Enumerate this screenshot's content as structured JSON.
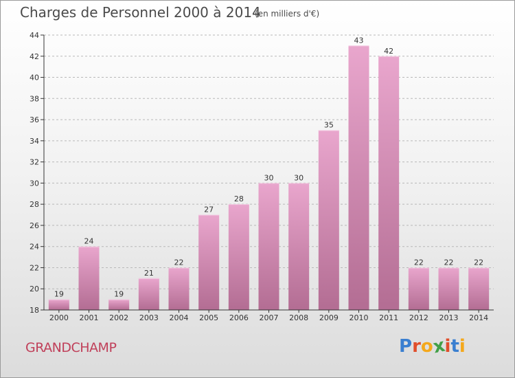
{
  "header": {
    "title": "Charges de Personnel 2000 à 2014",
    "subtitle": "(en milliers d'€)"
  },
  "footer": {
    "commune": "GRANDCHAMP",
    "logo_text": "Proxiti"
  },
  "colors": {
    "bar_top": "#e9a6cd",
    "bar_bottom": "#b36d93",
    "axis": "#333333",
    "grid": "#b8b8b8",
    "commune": "#c0405a",
    "logo_letters": [
      "#3a7fd0",
      "#e04e2b",
      "#f4a81c",
      "#42a047",
      "#e04e2b",
      "#3a7fd0",
      "#f4a81c"
    ]
  },
  "chart_data": {
    "type": "bar",
    "title": "Charges de Personnel 2000 à 2014",
    "subtitle": "(en milliers d'€)",
    "xlabel": "",
    "ylabel": "",
    "categories": [
      "2000",
      "2001",
      "2002",
      "2003",
      "2004",
      "2005",
      "2006",
      "2007",
      "2008",
      "2009",
      "2010",
      "2011",
      "2012",
      "2013",
      "2014"
    ],
    "values": [
      19,
      24,
      19,
      21,
      22,
      27,
      28,
      30,
      30,
      35,
      43,
      42,
      22,
      22,
      22
    ],
    "ylim": [
      18,
      44
    ],
    "yticks": [
      18,
      20,
      22,
      24,
      26,
      28,
      30,
      32,
      34,
      36,
      38,
      40,
      42,
      44
    ],
    "grid": "horizontal dashed",
    "data_labels": true
  }
}
